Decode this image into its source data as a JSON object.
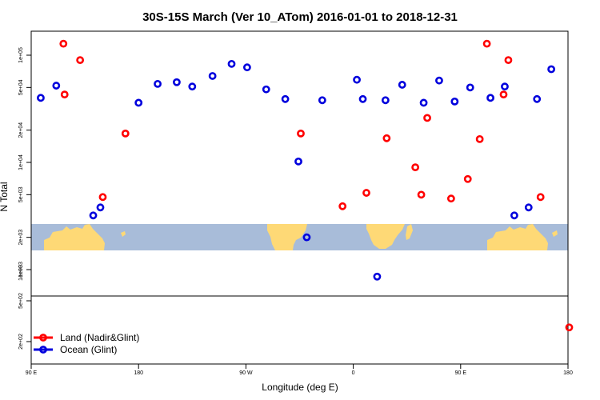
{
  "chart_data": {
    "type": "scatter",
    "title": "30S-15S March (Ver 10_ATom)   2016-01-01 to 2018-12-31",
    "xlabel": "Longitude (deg E)",
    "ylabel": "N Total",
    "y_scale": "log",
    "x_ticks": [
      {
        "value": 90,
        "label": "90 E"
      },
      {
        "value": 180,
        "label": "180"
      },
      {
        "value": 270,
        "label": "90 W"
      },
      {
        "value": 360,
        "label": "0"
      },
      {
        "value": 450,
        "label": "90 E"
      },
      {
        "value": 540,
        "label": "180"
      }
    ],
    "y_ticks_upper": [
      {
        "value": 1000,
        "label": "1e+03"
      },
      {
        "value": 2000,
        "label": "2e+03"
      },
      {
        "value": 5000,
        "label": "5e+03"
      },
      {
        "value": 10000,
        "label": "1e+04"
      },
      {
        "value": 20000,
        "label": "2e+04"
      },
      {
        "value": 50000,
        "label": "5e+04"
      },
      {
        "value": 100000,
        "label": "1e+05"
      }
    ],
    "y_ticks_lower": [
      {
        "value": 200,
        "label": "2e+02"
      },
      {
        "value": 500,
        "label": "5e+02"
      },
      {
        "value": 1000,
        "label": "1e+03"
      }
    ],
    "legend_position": "bottom-left",
    "colors": {
      "land": "#ff0000",
      "ocean": "#0000dd",
      "map_ocean": "#a8bcd9",
      "map_land": "#fed976"
    },
    "series": [
      {
        "name": "Land (Nadir&Glint)",
        "key": "land",
        "points": [
          [
            117,
            128000
          ],
          [
            131,
            90000
          ],
          [
            118,
            43000
          ],
          [
            150,
            4750
          ],
          [
            169,
            18600
          ],
          [
            316,
            18600
          ],
          [
            351,
            3900
          ],
          [
            371,
            5200
          ],
          [
            388,
            16800
          ],
          [
            417,
            5000
          ],
          [
            412,
            9000
          ],
          [
            422,
            26000
          ],
          [
            442,
            4600
          ],
          [
            456,
            7000
          ],
          [
            466,
            16500
          ],
          [
            472,
            128000
          ],
          [
            490,
            90000
          ],
          [
            486,
            43000
          ],
          [
            517,
            4750
          ],
          [
            541,
            275
          ]
        ]
      },
      {
        "name": "Ocean (Glint)",
        "key": "ocean",
        "points": [
          [
            98,
            40000
          ],
          [
            111,
            52000
          ],
          [
            142,
            3200
          ],
          [
            148,
            3800
          ],
          [
            180,
            36000
          ],
          [
            196,
            54000
          ],
          [
            212,
            56000
          ],
          [
            225,
            51000
          ],
          [
            242,
            64000
          ],
          [
            258,
            83000
          ],
          [
            271,
            77000
          ],
          [
            287,
            48000
          ],
          [
            303,
            39000
          ],
          [
            314,
            10200
          ],
          [
            321,
            2000
          ],
          [
            334,
            38000
          ],
          [
            363,
            59000
          ],
          [
            368,
            39000
          ],
          [
            380,
            860
          ],
          [
            387,
            38000
          ],
          [
            401,
            53000
          ],
          [
            419,
            36000
          ],
          [
            432,
            58000
          ],
          [
            445,
            37000
          ],
          [
            458,
            50000
          ],
          [
            475,
            40000
          ],
          [
            487,
            51000
          ],
          [
            495,
            3200
          ],
          [
            507,
            3800
          ],
          [
            514,
            39000
          ],
          [
            526,
            74000
          ]
        ]
      }
    ]
  }
}
